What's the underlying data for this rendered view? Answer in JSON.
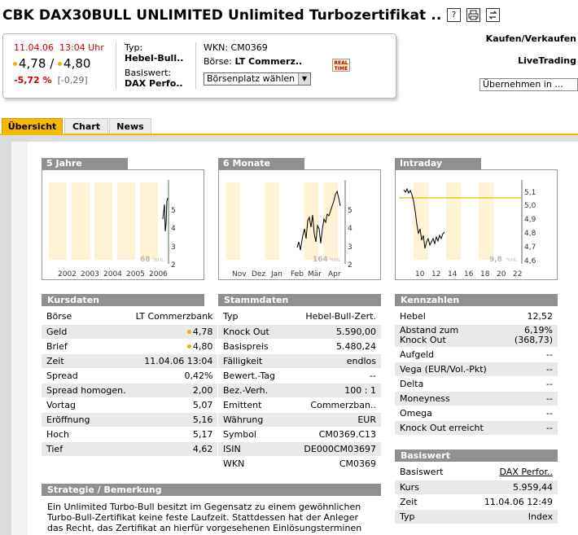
{
  "title": "CBK DAX30BULL UNLIMITED Unlimited Turbozertifikat ..",
  "title_icons": [
    "help-icon",
    "print-icon",
    "refresh-icon"
  ],
  "quote": {
    "date": "11.04.06",
    "time": "13:04 Uhr",
    "bid": "4,78",
    "sep": "/",
    "ask": "4,80",
    "change_pct": "-5,72 %",
    "change_abs": "[-0,29]"
  },
  "info": {
    "typ_label": "Typ:",
    "typ_value": "Hebel-Bull..",
    "basis_label": "Basiswert:",
    "basis_value": "DAX Perfo..",
    "wkn_label": "WKN:",
    "wkn_value": "CM0369",
    "boerse_label": "Börse:",
    "boerse_value": "LT Commerz..",
    "select_label": "Börsenplatz wählen",
    "realtime_line1": "REAL",
    "realtime_line2": "TIME"
  },
  "right_links": {
    "kaufen": "Kaufen/Verkaufen",
    "livetrading": "LiveTrading",
    "uebernehmen_placeholder": "Übernehmen in ..."
  },
  "tabs": [
    {
      "label": "Übersicht",
      "active": true
    },
    {
      "label": "Chart",
      "active": false
    },
    {
      "label": "News",
      "active": false
    }
  ],
  "charts": [
    {
      "title": "5 Jahre",
      "x_labels": [
        "2002",
        "2003",
        "2004",
        "2005",
        "2006"
      ],
      "y_labels": [
        "5",
        "4",
        "3",
        "2"
      ],
      "watermark": "68",
      "watermark_suffix": "%HL"
    },
    {
      "title": "6 Monate",
      "x_labels": [
        "Nov",
        "Dez",
        "Jan",
        "Feb",
        "Mär",
        "Apr"
      ],
      "y_labels": [
        "5",
        "4",
        "3",
        "2"
      ],
      "watermark": "164",
      "watermark_suffix": "%HL"
    },
    {
      "title": "Intraday",
      "x_labels": [
        "10",
        "12",
        "14",
        "16",
        "18",
        "20",
        "22"
      ],
      "y_labels": [
        "5,1",
        "5,0",
        "4,9",
        "4,8",
        "4,7",
        "4,6"
      ],
      "watermark": "9,8",
      "watermark_suffix": "%HL"
    }
  ],
  "kursdaten": {
    "title": "Kursdaten",
    "rows": [
      {
        "label": "Börse",
        "value": "LT Commerzbank"
      },
      {
        "label": "Geld",
        "value": "4,78",
        "dot": true
      },
      {
        "label": "Brief",
        "value": "4,80",
        "dot": true
      },
      {
        "label": "Zeit",
        "value": "11.04.06  13:04"
      },
      {
        "label": "Spread",
        "value": "0,42%"
      },
      {
        "label": "Spread homogen.",
        "value": "2,00"
      },
      {
        "label": "Vortag",
        "value": "5,07"
      },
      {
        "label": "Eröffnung",
        "value": "5,16"
      },
      {
        "label": "Hoch",
        "value": "5,17"
      },
      {
        "label": "Tief",
        "value": "4,62"
      }
    ]
  },
  "stammdaten": {
    "title": "Stammdaten",
    "rows": [
      {
        "label": "Typ",
        "value": "Hebel-Bull-Zert."
      },
      {
        "label": "Knock Out",
        "value": "5.590,00"
      },
      {
        "label": "Basispreis",
        "value": "5.480,24"
      },
      {
        "label": "Fälligkeit",
        "value": "endlos"
      },
      {
        "label": "Bewert.-Tag",
        "value": "--"
      },
      {
        "label": "Bez.-Verh.",
        "value": "100 : 1"
      },
      {
        "label": "Emittent",
        "value": "Commerzban.."
      },
      {
        "label": "Währung",
        "value": "EUR"
      },
      {
        "label": "Symbol",
        "value": "CM0369.C13"
      },
      {
        "label": "ISIN",
        "value": "DE000CM03697"
      },
      {
        "label": "WKN",
        "value": "CM0369"
      }
    ]
  },
  "kennzahlen": {
    "title": "Kennzahlen",
    "rows": [
      {
        "label": "Hebel",
        "value": "12,52"
      },
      {
        "label": "Abstand zum",
        "label2": "Knock Out",
        "value": "6,19%",
        "value2": "(368,73)"
      },
      {
        "label": "Aufgeld",
        "value": "--"
      },
      {
        "label": "Vega (EUR/Vol.-Pkt)",
        "value": "--"
      },
      {
        "label": "Delta",
        "value": "--"
      },
      {
        "label": "Moneyness",
        "value": "--"
      },
      {
        "label": "Omega",
        "value": "--"
      },
      {
        "label": "Knock Out erreicht",
        "value": "--"
      }
    ]
  },
  "basiswert": {
    "title": "Basiswert",
    "rows": [
      {
        "label": "Basiswert",
        "value": "DAX Perfor..",
        "link": true
      },
      {
        "label": "Kurs",
        "value": "5.959,44"
      },
      {
        "label": "Zeit",
        "value": "11.04.06  12:49"
      },
      {
        "label": "Typ",
        "value": "Index"
      }
    ]
  },
  "strategie": {
    "title": "Strategie / Bemerkung",
    "lines": [
      "Ein Unlimited Turbo-Bull besitzt im Gegensatz zu einem gewöhnlichen",
      "Turbo-Bull-Zertifikat keine feste Laufzeit. Stattdessen hat der Anleger",
      "das Recht, das Zertifikat an hierfür vorgesehenen Einlösungsterminen"
    ]
  }
}
